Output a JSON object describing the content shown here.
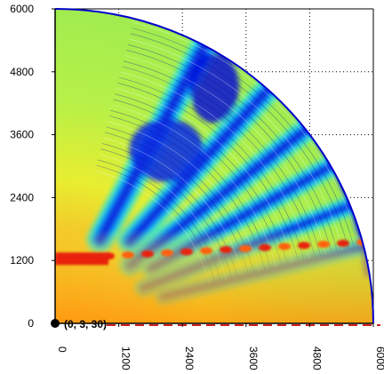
{
  "chart_data": {
    "type": "heatmap",
    "subtype": "polar-quadrant-field",
    "title": "",
    "xlabel": "",
    "ylabel": "",
    "xlim": [
      0,
      6000
    ],
    "ylim": [
      0,
      6000
    ],
    "x_ticks": [
      "0",
      "1200",
      "2400",
      "3600",
      "4800",
      "6000"
    ],
    "y_ticks": [
      "0",
      "1200",
      "2400",
      "3600",
      "4800",
      "6000"
    ],
    "x_tick_values": [
      0,
      1200,
      2400,
      3600,
      4800,
      6000
    ],
    "y_tick_values": [
      0,
      1200,
      2400,
      3600,
      4800,
      6000
    ],
    "grid": true,
    "grid_style_outer": "dotted",
    "colormap": [
      "#0000dd",
      "#00a0ff",
      "#30e8d0",
      "#9af040",
      "#f0f020",
      "#ffc020",
      "#ff9000",
      "#ff2000"
    ],
    "colors": {
      "background_low": "#f7c228",
      "bottom_band": "#f39a12",
      "hot_line": "#e8200c",
      "blue_ridge": "#1030e0",
      "reference_line": "#cc2020"
    },
    "radius_max": 6000,
    "hot_line_y": 1250,
    "blue_rays_deg": [
      62,
      48,
      38,
      30,
      22,
      14
    ],
    "point": {
      "x": 0,
      "y": 0,
      "label": "(0, 3, 30)"
    },
    "reference_line_y": 0
  }
}
